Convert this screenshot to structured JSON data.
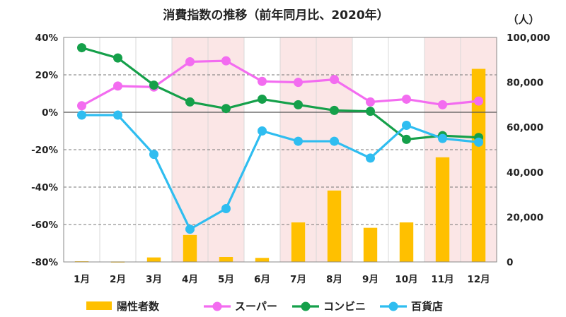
{
  "chart_data": {
    "type": "bar+line",
    "title": "消費指数の推移（前年同月比、2020年）",
    "y2_unit": "（人）",
    "categories": [
      "1月",
      "2月",
      "3月",
      "4月",
      "5月",
      "6月",
      "7月",
      "8月",
      "9月",
      "10月",
      "11月",
      "12月"
    ],
    "y_left": {
      "ylim": [
        -80,
        40
      ],
      "ticks": [
        40,
        20,
        0,
        -20,
        -40,
        -60,
        -80
      ],
      "tick_labels": [
        "40%",
        "20%",
        "0%",
        "-20%",
        "-40%",
        "-60%",
        "-80%"
      ]
    },
    "y_right": {
      "ylim": [
        0,
        100000
      ],
      "ticks": [
        100000,
        80000,
        60000,
        40000,
        20000,
        0
      ],
      "tick_labels": [
        "100,000",
        "80,000",
        "60,000",
        "40,000",
        "20,000",
        "0"
      ]
    },
    "shaded_months": [
      4,
      5,
      7,
      8,
      11,
      12
    ],
    "bars": {
      "name": "陽性者数",
      "axis": "right",
      "color": "#ffc000",
      "values": [
        300,
        200,
        2000,
        12000,
        2200,
        1800,
        17600,
        31800,
        15200,
        17600,
        46600,
        86000
      ]
    },
    "series": [
      {
        "name": "スーパー",
        "axis": "left",
        "color": "#f36cf0",
        "values": [
          3.5,
          14,
          13.5,
          27,
          27.5,
          16.5,
          16,
          17.5,
          5.5,
          7,
          4,
          6
        ]
      },
      {
        "name": "コンビニ",
        "axis": "left",
        "color": "#15a04a",
        "values": [
          34.5,
          29,
          14.5,
          5.5,
          2,
          7,
          4,
          1,
          0.5,
          -14.5,
          -12.5,
          -13.5
        ]
      },
      {
        "name": "百貨店",
        "axis": "left",
        "color": "#2fbdf0",
        "values": [
          -1.5,
          -1.5,
          -22.5,
          -62.5,
          -51.5,
          -10,
          -15.5,
          -15.5,
          -24.5,
          -7,
          -14,
          -16
        ]
      }
    ],
    "legend_position": "bottom"
  }
}
